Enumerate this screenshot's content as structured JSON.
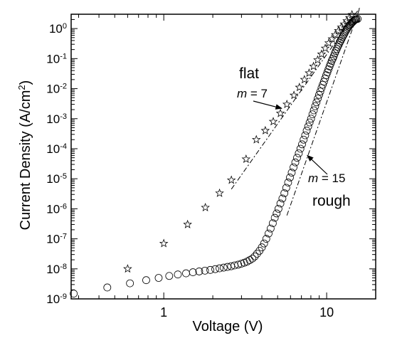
{
  "chart_data": {
    "type": "scatter",
    "xlabel": "Voltage (V)",
    "ylabel_parts": [
      "Current Density (A/cm",
      "2",
      ")"
    ],
    "xscale": "log",
    "yscale": "log",
    "xlim": [
      0.27,
      20
    ],
    "ylim": [
      1e-09,
      3
    ],
    "grid": false,
    "x_ticks": [
      {
        "value": 1,
        "label": "1"
      },
      {
        "value": 10,
        "label": "10"
      }
    ],
    "y_ticks": [
      {
        "value": 1,
        "base": "10",
        "exp": "0"
      },
      {
        "value": 0.1,
        "base": "10",
        "exp": "-1"
      },
      {
        "value": 0.01,
        "base": "10",
        "exp": "-2"
      },
      {
        "value": 0.001,
        "base": "10",
        "exp": "-3"
      },
      {
        "value": 0.0001,
        "base": "10",
        "exp": "-4"
      },
      {
        "value": 1e-05,
        "base": "10",
        "exp": "-5"
      },
      {
        "value": 1e-06,
        "base": "10",
        "exp": "-6"
      },
      {
        "value": 1e-07,
        "base": "10",
        "exp": "-7"
      },
      {
        "value": 1e-08,
        "base": "10",
        "exp": "-8"
      },
      {
        "value": 1e-09,
        "base": "10",
        "exp": "-9"
      }
    ],
    "series": [
      {
        "marker": "star",
        "x": [
          0.6,
          1.0,
          1.4,
          1.8,
          2.2,
          2.6,
          3.2,
          3.7,
          4.2,
          4.7,
          5.2,
          5.7,
          6.3,
          6.8,
          7.3,
          7.8,
          8.3,
          8.8,
          9.3,
          9.8,
          10.3,
          10.8,
          11.3,
          11.8,
          12.3,
          12.8,
          13.3,
          13.8,
          14.3
        ],
        "y": [
          1e-08,
          7e-08,
          3e-07,
          1.1e-06,
          3.3e-06,
          9e-06,
          4.5e-05,
          0.0002,
          0.0004,
          0.0008,
          0.0015,
          0.003,
          0.006,
          0.011,
          0.02,
          0.033,
          0.055,
          0.09,
          0.14,
          0.22,
          0.33,
          0.45,
          0.62,
          0.85,
          1.1,
          1.4,
          1.8,
          2.3,
          2.9
        ]
      },
      {
        "marker": "circle",
        "x": [
          0.28,
          0.45,
          0.62,
          0.78,
          0.93,
          1.08,
          1.22,
          1.37,
          1.51,
          1.65,
          1.79,
          1.93,
          2.07,
          2.2,
          2.33,
          2.46,
          2.59,
          2.72,
          2.86,
          2.99,
          3.12,
          3.25,
          3.37,
          3.5,
          3.62,
          3.74,
          3.87,
          4.0,
          4.13,
          4.26,
          4.4,
          4.53,
          4.67,
          4.8,
          4.93,
          5.06,
          5.2,
          5.35,
          5.5,
          5.65,
          5.8,
          5.95,
          6.1,
          6.26,
          6.42,
          6.58,
          6.74,
          6.9,
          7.06,
          7.22,
          7.38,
          7.54,
          7.7,
          7.86,
          8.02,
          8.18,
          8.34,
          8.5,
          8.66,
          8.82,
          8.98,
          9.14,
          9.3,
          9.46,
          9.62,
          9.78,
          9.94,
          10.1,
          10.26,
          10.42,
          10.58,
          10.74,
          10.9,
          11.06,
          11.22,
          11.38,
          11.54,
          11.7,
          11.86,
          12.02,
          12.18,
          12.34,
          12.5,
          12.66,
          12.82,
          12.98,
          13.14,
          13.3,
          13.46,
          13.62,
          13.78,
          13.94,
          14.1,
          14.26,
          14.42,
          14.58,
          14.74,
          14.9,
          15.06,
          15.22,
          15.5
        ],
        "y": [
          1.5e-09,
          2.4e-09,
          3.3e-09,
          4.2e-09,
          5e-09,
          5.8e-09,
          6.5e-09,
          7.1e-09,
          7.7e-09,
          8.2e-09,
          8.7e-09,
          9.2e-09,
          9.8e-09,
          1.04e-08,
          1.1e-08,
          1.16e-08,
          1.22e-08,
          1.3e-08,
          1.38e-08,
          1.48e-08,
          1.6e-08,
          1.75e-08,
          1.95e-08,
          2.2e-08,
          2.6e-08,
          3.2e-08,
          4e-08,
          5.2e-08,
          7e-08,
          1e-07,
          1.5e-07,
          2.2e-07,
          3.3e-07,
          5e-07,
          7e-07,
          1e-06,
          1.5e-06,
          2.2e-06,
          3.3e-06,
          5e-06,
          7.5e-06,
          1.1e-05,
          1.6e-05,
          2.4e-05,
          3.5e-05,
          5e-05,
          7e-05,
          0.0001,
          0.00014,
          0.0002,
          0.00028,
          0.0004,
          0.00055,
          0.00075,
          0.001,
          0.0014,
          0.0019,
          0.0026,
          0.0035,
          0.0047,
          0.0062,
          0.008,
          0.0105,
          0.0135,
          0.017,
          0.022,
          0.028,
          0.035,
          0.044,
          0.055,
          0.068,
          0.084,
          0.1,
          0.12,
          0.15,
          0.18,
          0.21,
          0.25,
          0.29,
          0.34,
          0.39,
          0.45,
          0.52,
          0.59,
          0.67,
          0.76,
          0.85,
          0.95,
          1.05,
          1.15,
          1.25,
          1.35,
          1.45,
          1.55,
          1.65,
          1.75,
          1.85,
          1.95,
          2.0,
          2.05,
          2.1
        ]
      }
    ],
    "fit_lines": [
      {
        "x": [
          2.6,
          16
        ],
        "y": [
          4.5e-06,
          5
        ],
        "style": "dash-dot"
      },
      {
        "x": [
          5.7,
          16
        ],
        "y": [
          6e-07,
          5
        ],
        "style": "dash-dot"
      }
    ],
    "annotations": [
      {
        "label": "flat",
        "slope_var": "m",
        "slope_eq": " = 7",
        "arrow_to": [
          5.3,
          0.0022
        ]
      },
      {
        "label": "rough",
        "slope_var": "m",
        "slope_eq": " = 15",
        "arrow_to": [
          7.6,
          6e-05
        ]
      }
    ]
  }
}
